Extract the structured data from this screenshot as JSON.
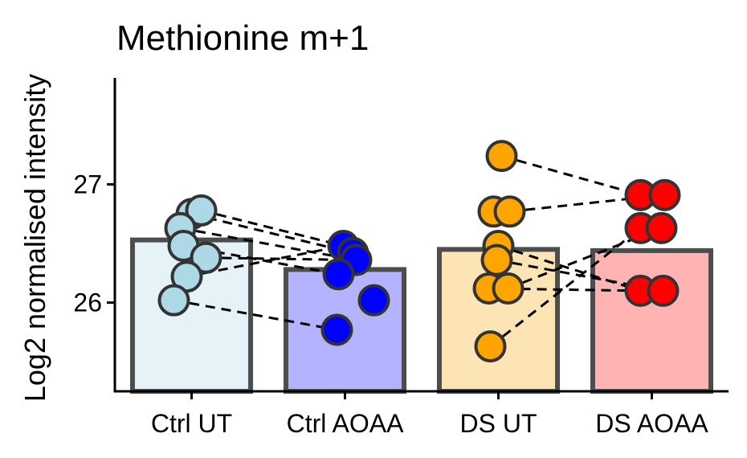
{
  "chart_data": {
    "type": "bar",
    "title": "Methionine m+1",
    "xlabel": "",
    "ylabel": "Log2 normalised intensity",
    "categories": [
      "Ctrl UT",
      "Ctrl AOAA",
      "DS UT",
      "DS AOAA"
    ],
    "y_ticks": [
      26,
      27
    ],
    "ylim": [
      25.25,
      27.9
    ],
    "grid": false,
    "legend": "none",
    "bar_fill_colors": [
      "#e5f2f8",
      "#b3b3ff",
      "#fde4b5",
      "#ffb3b3"
    ],
    "point_colors": [
      "#add8e6",
      "#0000ff",
      "#ffa500",
      "#ff0000"
    ],
    "bar_outline_color": "#4d4d4d",
    "values": [
      26.53,
      26.28,
      26.45,
      26.44
    ],
    "points": [
      [
        26.75,
        26.78,
        26.63,
        26.48,
        26.38,
        26.22,
        26.02
      ],
      [
        26.48,
        26.42,
        26.36,
        26.24,
        26.02,
        25.77
      ],
      [
        27.24,
        26.77,
        26.77,
        26.48,
        26.36,
        26.12,
        26.12,
        25.63
      ],
      [
        26.91,
        26.91,
        26.63,
        26.63,
        26.1,
        26.1
      ]
    ],
    "pairs": [
      {
        "from": [
          0,
          1
        ],
        "to": [
          1,
          0
        ]
      },
      {
        "from": [
          0,
          0
        ],
        "to": [
          1,
          1
        ]
      },
      {
        "from": [
          0,
          2
        ],
        "to": [
          1,
          2
        ]
      },
      {
        "from": [
          0,
          3
        ],
        "to": [
          1,
          3
        ]
      },
      {
        "from": [
          0,
          4
        ],
        "to": [
          1,
          2
        ]
      },
      {
        "from": [
          0,
          5
        ],
        "to": [
          1,
          0
        ]
      },
      {
        "from": [
          0,
          6
        ],
        "to": [
          1,
          5
        ]
      },
      {
        "from": [
          2,
          0
        ],
        "to": [
          3,
          0
        ]
      },
      {
        "from": [
          2,
          2
        ],
        "to": [
          3,
          1
        ]
      },
      {
        "from": [
          2,
          3
        ],
        "to": [
          3,
          4
        ]
      },
      {
        "from": [
          2,
          4
        ],
        "to": [
          3,
          5
        ]
      },
      {
        "from": [
          2,
          5
        ],
        "to": [
          3,
          4
        ]
      },
      {
        "from": [
          2,
          6
        ],
        "to": [
          3,
          3
        ]
      },
      {
        "from": [
          2,
          7
        ],
        "to": [
          3,
          2
        ]
      }
    ]
  }
}
